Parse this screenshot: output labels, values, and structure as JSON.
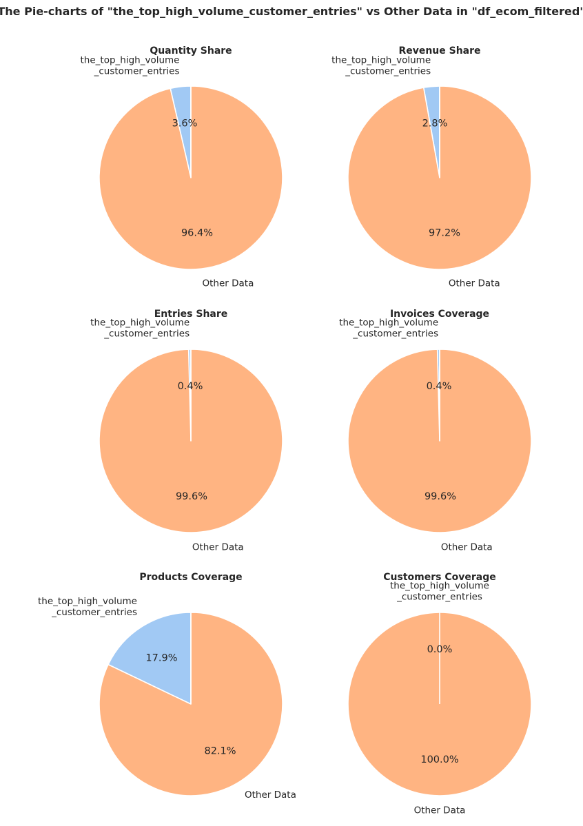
{
  "suptitle": "The Pie-charts of \"the_top_high_volume_customer_entries\" vs Other Data in \"df_ecom_filtered\"",
  "colors": {
    "highlight": "#a1c9f4",
    "other": "#ffb482",
    "edge": "#ffffff",
    "text": "#262626"
  },
  "chart_data": [
    {
      "type": "pie",
      "title": "Quantity Share",
      "labels": [
        "the_top_high_volume\n_customer_entries",
        "Other Data"
      ],
      "values": [
        3.6,
        96.4
      ],
      "pct_labels": [
        "3.6%",
        "96.4%"
      ]
    },
    {
      "type": "pie",
      "title": "Revenue Share",
      "labels": [
        "the_top_high_volume\n_customer_entries",
        "Other Data"
      ],
      "values": [
        2.8,
        97.2
      ],
      "pct_labels": [
        "2.8%",
        "97.2%"
      ]
    },
    {
      "type": "pie",
      "title": "Entries Share",
      "labels": [
        "the_top_high_volume\n_customer_entries",
        "Other Data"
      ],
      "values": [
        0.4,
        99.6
      ],
      "pct_labels": [
        "0.4%",
        "99.6%"
      ]
    },
    {
      "type": "pie",
      "title": "Invoices Coverage",
      "labels": [
        "the_top_high_volume\n_customer_entries",
        "Other Data"
      ],
      "values": [
        0.4,
        99.6
      ],
      "pct_labels": [
        "0.4%",
        "99.6%"
      ]
    },
    {
      "type": "pie",
      "title": "Products Coverage",
      "labels": [
        "the_top_high_volume\n_customer_entries",
        "Other Data"
      ],
      "values": [
        17.9,
        82.1
      ],
      "pct_labels": [
        "17.9%",
        "82.1%"
      ]
    },
    {
      "type": "pie",
      "title": "Customers Coverage",
      "labels": [
        "the_top_high_volume\n_customer_entries",
        "Other Data"
      ],
      "values": [
        0.0,
        100.0
      ],
      "pct_labels": [
        "0.0%",
        "100.0%"
      ]
    }
  ]
}
